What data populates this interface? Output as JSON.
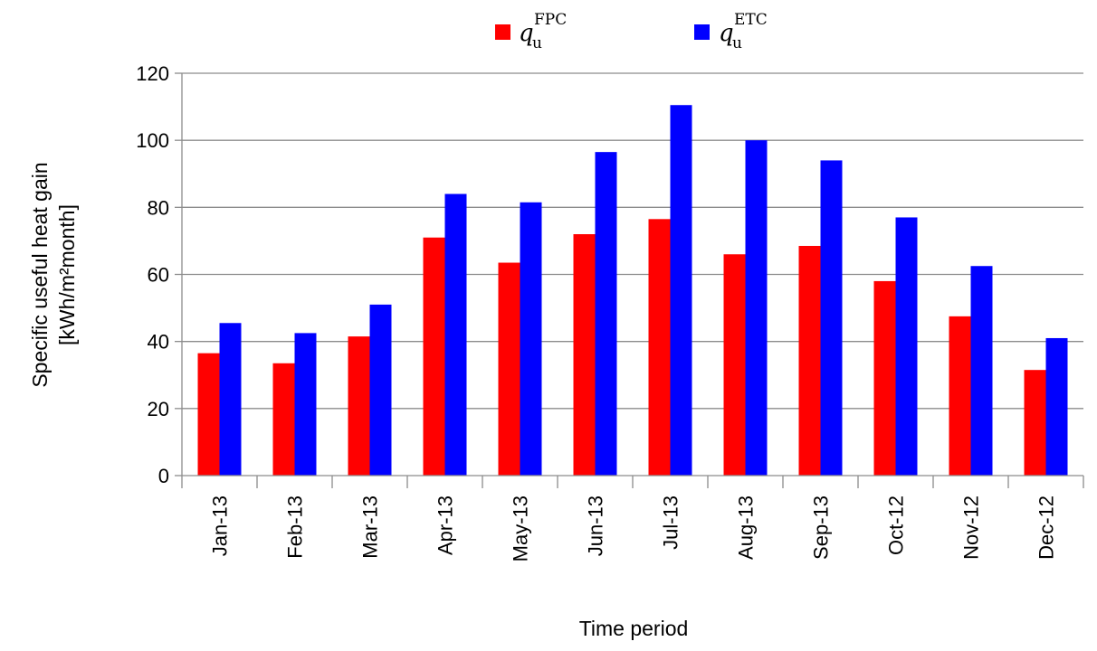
{
  "chart_data": {
    "type": "bar",
    "categories": [
      "Jan-13",
      "Feb-13",
      "Mar-13",
      "Apr-13",
      "May-13",
      "Jun-13",
      "Jul-13",
      "Aug-13",
      "Sep-13",
      "Oct-12",
      "Nov-12",
      "Dec-12"
    ],
    "series": [
      {
        "name_symbol": "q",
        "name_subscript": "u",
        "name_superscript": "FPC",
        "color": "#ff0000",
        "values": [
          36.5,
          33.5,
          41.5,
          71,
          63.5,
          72,
          76.5,
          66,
          68.5,
          58,
          47.5,
          31.5
        ]
      },
      {
        "name_symbol": "q",
        "name_subscript": "u",
        "name_superscript": "ETC",
        "color": "#0000ff",
        "values": [
          45.5,
          42.5,
          51,
          84,
          81.5,
          96.5,
          110.5,
          100,
          94,
          77,
          62.5,
          41
        ]
      }
    ],
    "ylim": [
      0,
      120
    ],
    "yticks": [
      "0",
      "20",
      "40",
      "60",
      "80",
      "100",
      "120"
    ],
    "ylabel_line1": "Specific useful heat gain",
    "ylabel_line2": "[kWh/m²month]",
    "xlabel": "Time period",
    "grid": true,
    "legend_position": "top-center"
  }
}
